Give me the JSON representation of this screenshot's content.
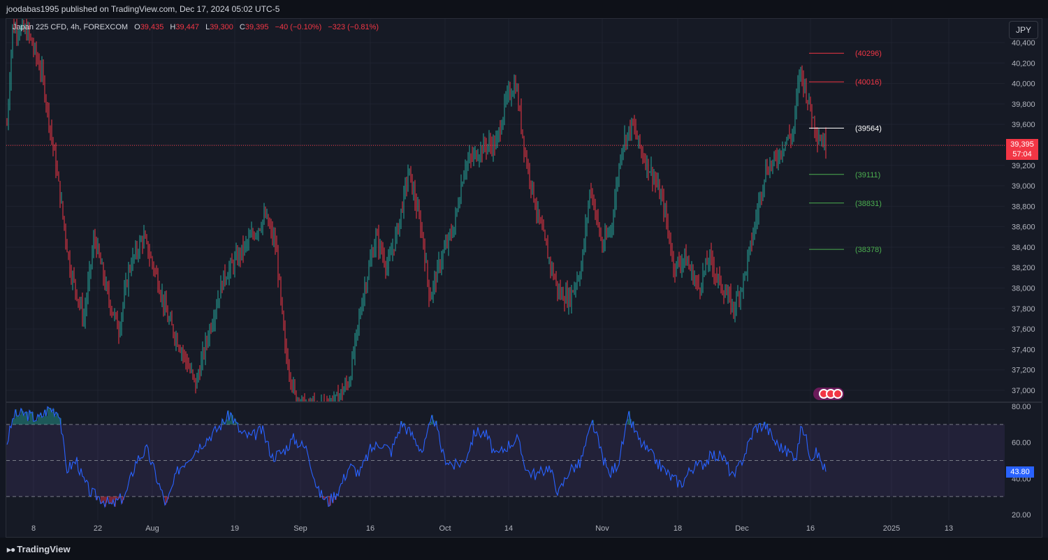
{
  "header": {
    "published": "joodabas1995 published on TradingView.com, Dec 17, 2024 05:02 UTC-5"
  },
  "legend": {
    "symbol": "Japan 225 CFD, 4h, FOREXCOM",
    "open_label": "O",
    "open": "39,435",
    "high_label": "H",
    "high": "39,447",
    "low_label": "L",
    "low": "39,300",
    "close_label": "C",
    "close": "39,395",
    "change": "−40 (−0.10%)",
    "change2": "−323 (−0.81%)"
  },
  "currency_button": "JPY",
  "price_tag": {
    "price": "39,395",
    "countdown": "57:04"
  },
  "rsi_tag": "43.80",
  "footer": {
    "brand": "TradingView"
  },
  "colors": {
    "background": "#131722",
    "up": "#26a69a",
    "down": "#f23645",
    "rsi_line": "#2962ff",
    "resistance": "#f23645",
    "support": "#4caf50",
    "pivot": "#ffffff"
  },
  "chart_data": [
    {
      "type": "candlestick",
      "title": "Japan 225 CFD, 4h, FOREXCOM",
      "y_axis": [
        "40,400",
        "40,200",
        "40,000",
        "39,800",
        "39,600",
        "39,400",
        "39,200",
        "39,000",
        "38,800",
        "38,600",
        "38,400",
        "38,200",
        "38,000",
        "37,800",
        "37,600",
        "37,400",
        "37,200",
        "37,000"
      ],
      "ylim": [
        36900,
        40500
      ],
      "x_ticks": [
        "8",
        "22",
        "Aug",
        "19",
        "Sep",
        "16",
        "Oct",
        "14",
        "Nov",
        "18",
        "Dec",
        "16",
        "2025",
        "13"
      ],
      "last_price": 39395,
      "levels": [
        {
          "label": "(40296)",
          "value": 40296,
          "kind": "resistance"
        },
        {
          "label": "(40016)",
          "value": 40016,
          "kind": "resistance"
        },
        {
          "label": "(39564)",
          "value": 39564,
          "kind": "pivot"
        },
        {
          "label": "(39111)",
          "value": 39111,
          "kind": "support"
        },
        {
          "label": "(38831)",
          "value": 38831,
          "kind": "support"
        },
        {
          "label": "(38378)",
          "value": 38378,
          "kind": "support"
        }
      ],
      "anchors": [
        [
          0,
          39600
        ],
        [
          8,
          40550
        ],
        [
          30,
          40500
        ],
        [
          50,
          40100
        ],
        [
          70,
          39200
        ],
        [
          90,
          38200
        ],
        [
          110,
          37700
        ],
        [
          125,
          38500
        ],
        [
          145,
          37900
        ],
        [
          160,
          37600
        ],
        [
          175,
          38200
        ],
        [
          195,
          38500
        ],
        [
          215,
          38100
        ],
        [
          230,
          37700
        ],
        [
          250,
          37400
        ],
        [
          270,
          37050
        ],
        [
          290,
          37600
        ],
        [
          310,
          38100
        ],
        [
          330,
          38300
        ],
        [
          350,
          38500
        ],
        [
          370,
          38700
        ],
        [
          385,
          38400
        ],
        [
          398,
          37400
        ],
        [
          412,
          36950
        ],
        [
          432,
          36800
        ],
        [
          452,
          36850
        ],
        [
          472,
          36900
        ],
        [
          490,
          37100
        ],
        [
          510,
          37950
        ],
        [
          528,
          38500
        ],
        [
          545,
          38200
        ],
        [
          560,
          38600
        ],
        [
          575,
          39150
        ],
        [
          595,
          38500
        ],
        [
          605,
          37900
        ],
        [
          622,
          38300
        ],
        [
          640,
          38600
        ],
        [
          655,
          39200
        ],
        [
          670,
          39300
        ],
        [
          685,
          39400
        ],
        [
          700,
          39400
        ],
        [
          715,
          39850
        ],
        [
          728,
          40000
        ],
        [
          742,
          39300
        ],
        [
          760,
          38700
        ],
        [
          775,
          38300
        ],
        [
          790,
          37950
        ],
        [
          805,
          37900
        ],
        [
          822,
          38200
        ],
        [
          835,
          39000
        ],
        [
          852,
          38400
        ],
        [
          865,
          38600
        ],
        [
          880,
          39400
        ],
        [
          895,
          39600
        ],
        [
          910,
          39300
        ],
        [
          925,
          39100
        ],
        [
          940,
          38800
        ],
        [
          955,
          38200
        ],
        [
          970,
          38300
        ],
        [
          990,
          38000
        ],
        [
          1005,
          38300
        ],
        [
          1020,
          38050
        ],
        [
          1040,
          37800
        ],
        [
          1055,
          38100
        ],
        [
          1070,
          38600
        ],
        [
          1085,
          39150
        ],
        [
          1100,
          39250
        ],
        [
          1115,
          39450
        ],
        [
          1125,
          39500
        ],
        [
          1135,
          40150
        ],
        [
          1148,
          39800
        ],
        [
          1160,
          39500
        ],
        [
          1172,
          39400
        ]
      ]
    },
    {
      "type": "line",
      "title": "",
      "y_axis": [
        "80.00",
        "60.00",
        "40.00",
        "20.00"
      ],
      "ylim": [
        20,
        80
      ],
      "bands": [
        30,
        50,
        70
      ],
      "last_value": 43.8,
      "anchors": [
        [
          0,
          60
        ],
        [
          10,
          75
        ],
        [
          25,
          76
        ],
        [
          45,
          73
        ],
        [
          60,
          79
        ],
        [
          75,
          77
        ],
        [
          85,
          45
        ],
        [
          100,
          50
        ],
        [
          108,
          40
        ],
        [
          120,
          32
        ],
        [
          135,
          29
        ],
        [
          150,
          25
        ],
        [
          170,
          31
        ],
        [
          185,
          50
        ],
        [
          200,
          56
        ],
        [
          212,
          43
        ],
        [
          228,
          25
        ],
        [
          245,
          45
        ],
        [
          260,
          52
        ],
        [
          280,
          60
        ],
        [
          300,
          67
        ],
        [
          320,
          76
        ],
        [
          335,
          65
        ],
        [
          350,
          63
        ],
        [
          365,
          67
        ],
        [
          380,
          52
        ],
        [
          395,
          55
        ],
        [
          410,
          62
        ],
        [
          430,
          56
        ],
        [
          445,
          33
        ],
        [
          460,
          27
        ],
        [
          475,
          34
        ],
        [
          490,
          47
        ],
        [
          505,
          43
        ],
        [
          520,
          56
        ],
        [
          535,
          60
        ],
        [
          550,
          55
        ],
        [
          565,
          71
        ],
        [
          580,
          64
        ],
        [
          595,
          55
        ],
        [
          610,
          75
        ],
        [
          625,
          52
        ],
        [
          640,
          47
        ],
        [
          655,
          50
        ],
        [
          670,
          66
        ],
        [
          685,
          65
        ],
        [
          700,
          52
        ],
        [
          715,
          58
        ],
        [
          730,
          62
        ],
        [
          745,
          44
        ],
        [
          760,
          42
        ],
        [
          775,
          47
        ],
        [
          790,
          32
        ],
        [
          805,
          45
        ],
        [
          820,
          48
        ],
        [
          838,
          71
        ],
        [
          850,
          55
        ],
        [
          862,
          42
        ],
        [
          875,
          49
        ],
        [
          890,
          74
        ],
        [
          905,
          61
        ],
        [
          920,
          54
        ],
        [
          935,
          47
        ],
        [
          950,
          41
        ],
        [
          965,
          37
        ],
        [
          980,
          46
        ],
        [
          995,
          48
        ],
        [
          1010,
          53
        ],
        [
          1025,
          52
        ],
        [
          1040,
          40
        ],
        [
          1055,
          53
        ],
        [
          1070,
          68
        ],
        [
          1085,
          70
        ],
        [
          1100,
          60
        ],
        [
          1115,
          55
        ],
        [
          1130,
          53
        ],
        [
          1138,
          70
        ],
        [
          1150,
          53
        ],
        [
          1160,
          54
        ],
        [
          1172,
          44
        ]
      ]
    }
  ]
}
